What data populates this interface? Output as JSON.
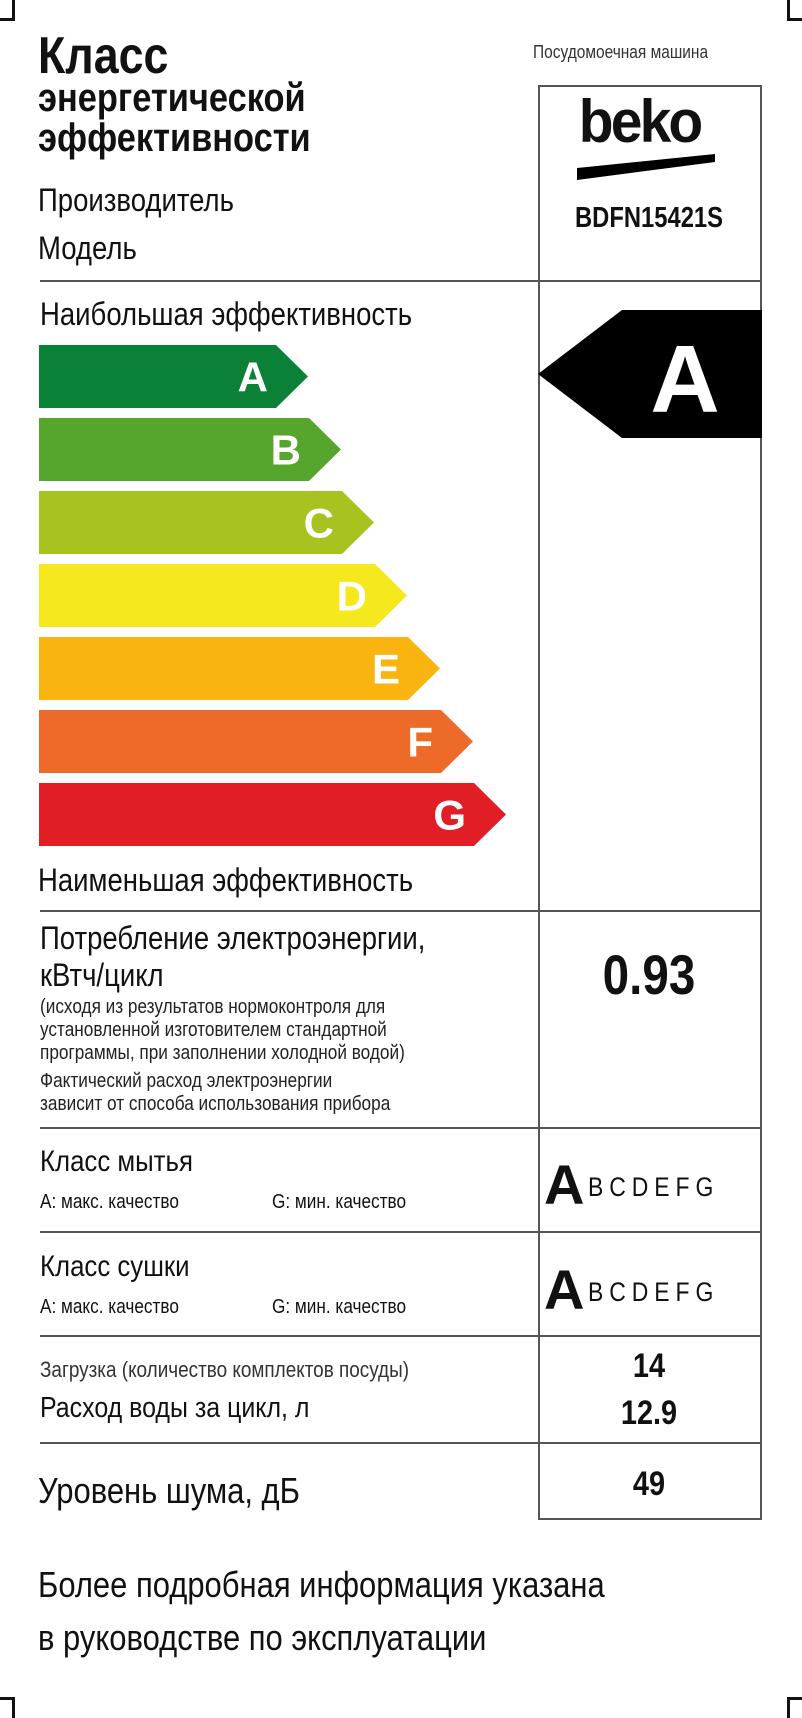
{
  "header": {
    "title_lines": [
      "Класс",
      "энергетической",
      "эффективности"
    ],
    "appliance_type": "Посудомоечная машина",
    "manufacturer_label": "Производитель",
    "model_label": "Модель",
    "brand_logo": "beko",
    "model_value": "BDFN15421S"
  },
  "efficiency": {
    "most_label": "Наибольшая эффективность",
    "least_label": "Наименьшая эффективность",
    "classes": [
      {
        "letter": "A",
        "color": "#0b8137"
      },
      {
        "letter": "B",
        "color": "#56a52c"
      },
      {
        "letter": "C",
        "color": "#a8c220"
      },
      {
        "letter": "D",
        "color": "#f5e81c"
      },
      {
        "letter": "E",
        "color": "#f9b40f"
      },
      {
        "letter": "F",
        "color": "#ee6a29"
      },
      {
        "letter": "G",
        "color": "#e11e25"
      }
    ],
    "rating": "A",
    "rating_color": "#000000"
  },
  "energy": {
    "label_lines": [
      "Потребление электроэнергии,",
      "кВтч/цикл"
    ],
    "note_lines": [
      "(исходя из результатов нормоконтроля для",
      "установленной изготовителем стандартной",
      "программы, при заполнении холодной водой)"
    ],
    "note2_lines": [
      "Фактический расход электроэнергии",
      "зависит от способа использования прибора"
    ],
    "value": "0.93"
  },
  "washing": {
    "label": "Класс мытья",
    "max_note": "A: макс. качество",
    "min_note": "G: мин. качество",
    "rating": "A",
    "others": "BCDEFG"
  },
  "drying": {
    "label": "Класс сушки",
    "max_note": "A: макс. качество",
    "min_note": "G: мин. качество",
    "rating": "A",
    "others": "BCDEFG"
  },
  "capacity": {
    "label": "Загрузка (количество комплектов посуды)",
    "value": "14"
  },
  "water": {
    "label": "Расход воды за цикл, л",
    "value": "12.9"
  },
  "noise": {
    "label": "Уровень шума, дБ",
    "value": "49"
  },
  "footer": {
    "lines": [
      "Более подробная информация указана",
      "в руководстве по эксплуатации"
    ]
  }
}
